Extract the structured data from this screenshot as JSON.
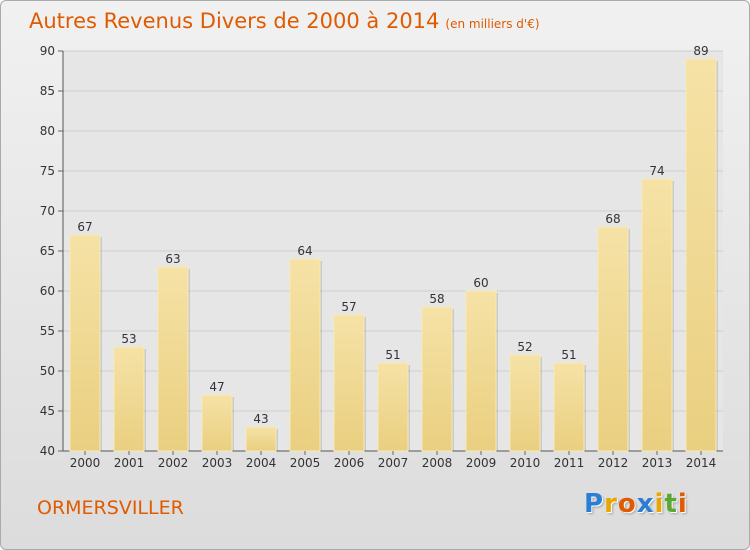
{
  "title": "Autres Revenus Divers de 2000 à 2014",
  "subtitle": "(en milliers d'€)",
  "commune": "ORMERSVILLER",
  "logo": {
    "letters": [
      "P",
      "r",
      "o",
      "x",
      "i",
      "t",
      "i"
    ],
    "colors": [
      "#2a7fd4",
      "#e8a600",
      "#e05a00",
      "#2a7fd4",
      "#e8a600",
      "#5aa832",
      "#e05a00"
    ]
  },
  "colors": {
    "bar": "#e9cf80",
    "bar_top": "#f6e2a6",
    "bar_edge": "#f7eab7",
    "title": "#e05a00",
    "grid": "#cfcfcf"
  },
  "chart_data": {
    "type": "bar",
    "categories": [
      "2000",
      "2001",
      "2002",
      "2003",
      "2004",
      "2005",
      "2006",
      "2007",
      "2008",
      "2009",
      "2010",
      "2011",
      "2012",
      "2013",
      "2014"
    ],
    "values": [
      67,
      53,
      63,
      47,
      43,
      64,
      57,
      51,
      58,
      60,
      52,
      51,
      68,
      74,
      89
    ],
    "ylim": [
      40,
      90
    ],
    "yticks": [
      40,
      45,
      50,
      55,
      60,
      65,
      70,
      75,
      80,
      85,
      90
    ],
    "grid": true,
    "data_labels": true
  }
}
